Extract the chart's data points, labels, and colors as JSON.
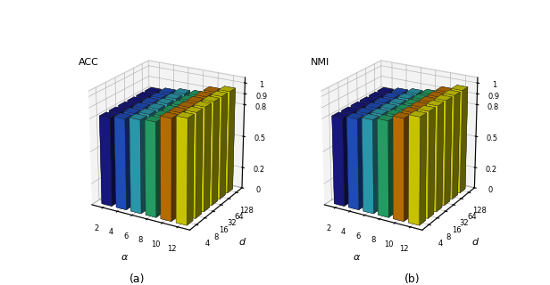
{
  "alpha_values": [
    2,
    4,
    6,
    8,
    10,
    12
  ],
  "d_values": [
    4,
    8,
    16,
    32,
    64,
    128
  ],
  "acc_data": [
    [
      0.82,
      0.82,
      0.82,
      0.82,
      0.82,
      0.82
    ],
    [
      0.84,
      0.84,
      0.84,
      0.84,
      0.84,
      0.84
    ],
    [
      0.86,
      0.86,
      0.86,
      0.86,
      0.86,
      0.86
    ],
    [
      0.87,
      0.87,
      0.87,
      0.87,
      0.87,
      0.87
    ],
    [
      0.93,
      0.93,
      0.93,
      0.93,
      0.93,
      0.93
    ],
    [
      0.96,
      0.96,
      0.96,
      0.96,
      0.96,
      0.96
    ]
  ],
  "nmi_data": [
    [
      0.82,
      0.82,
      0.82,
      0.82,
      0.82,
      0.82
    ],
    [
      0.84,
      0.84,
      0.84,
      0.84,
      0.84,
      0.84
    ],
    [
      0.86,
      0.86,
      0.86,
      0.86,
      0.86,
      0.86
    ],
    [
      0.88,
      0.88,
      0.88,
      0.88,
      0.88,
      0.88
    ],
    [
      0.93,
      0.93,
      0.93,
      0.93,
      0.93,
      0.93
    ],
    [
      0.97,
      0.97,
      0.97,
      0.97,
      0.97,
      0.97
    ]
  ],
  "colors_by_alpha": [
    "#1a1a8c",
    "#2255cc",
    "#30aabf",
    "#28b070",
    "#cc7a00",
    "#e0dc00"
  ],
  "title_acc": "ACC",
  "title_nmi": "NMI",
  "d_label": "d",
  "alpha_label": "α",
  "zticks": [
    0,
    0.2,
    0.5,
    0.8,
    0.9,
    1
  ],
  "ztick_labels": [
    "0",
    "0.2",
    "0.5",
    "0.8",
    "0.9",
    "1"
  ],
  "label_a": "(a)",
  "label_b": "(b)",
  "elev": 22,
  "azim": -60,
  "bar_width": 0.7,
  "bar_depth": 0.7,
  "figwidth": 6.16,
  "figheight": 3.2,
  "dpi": 100
}
